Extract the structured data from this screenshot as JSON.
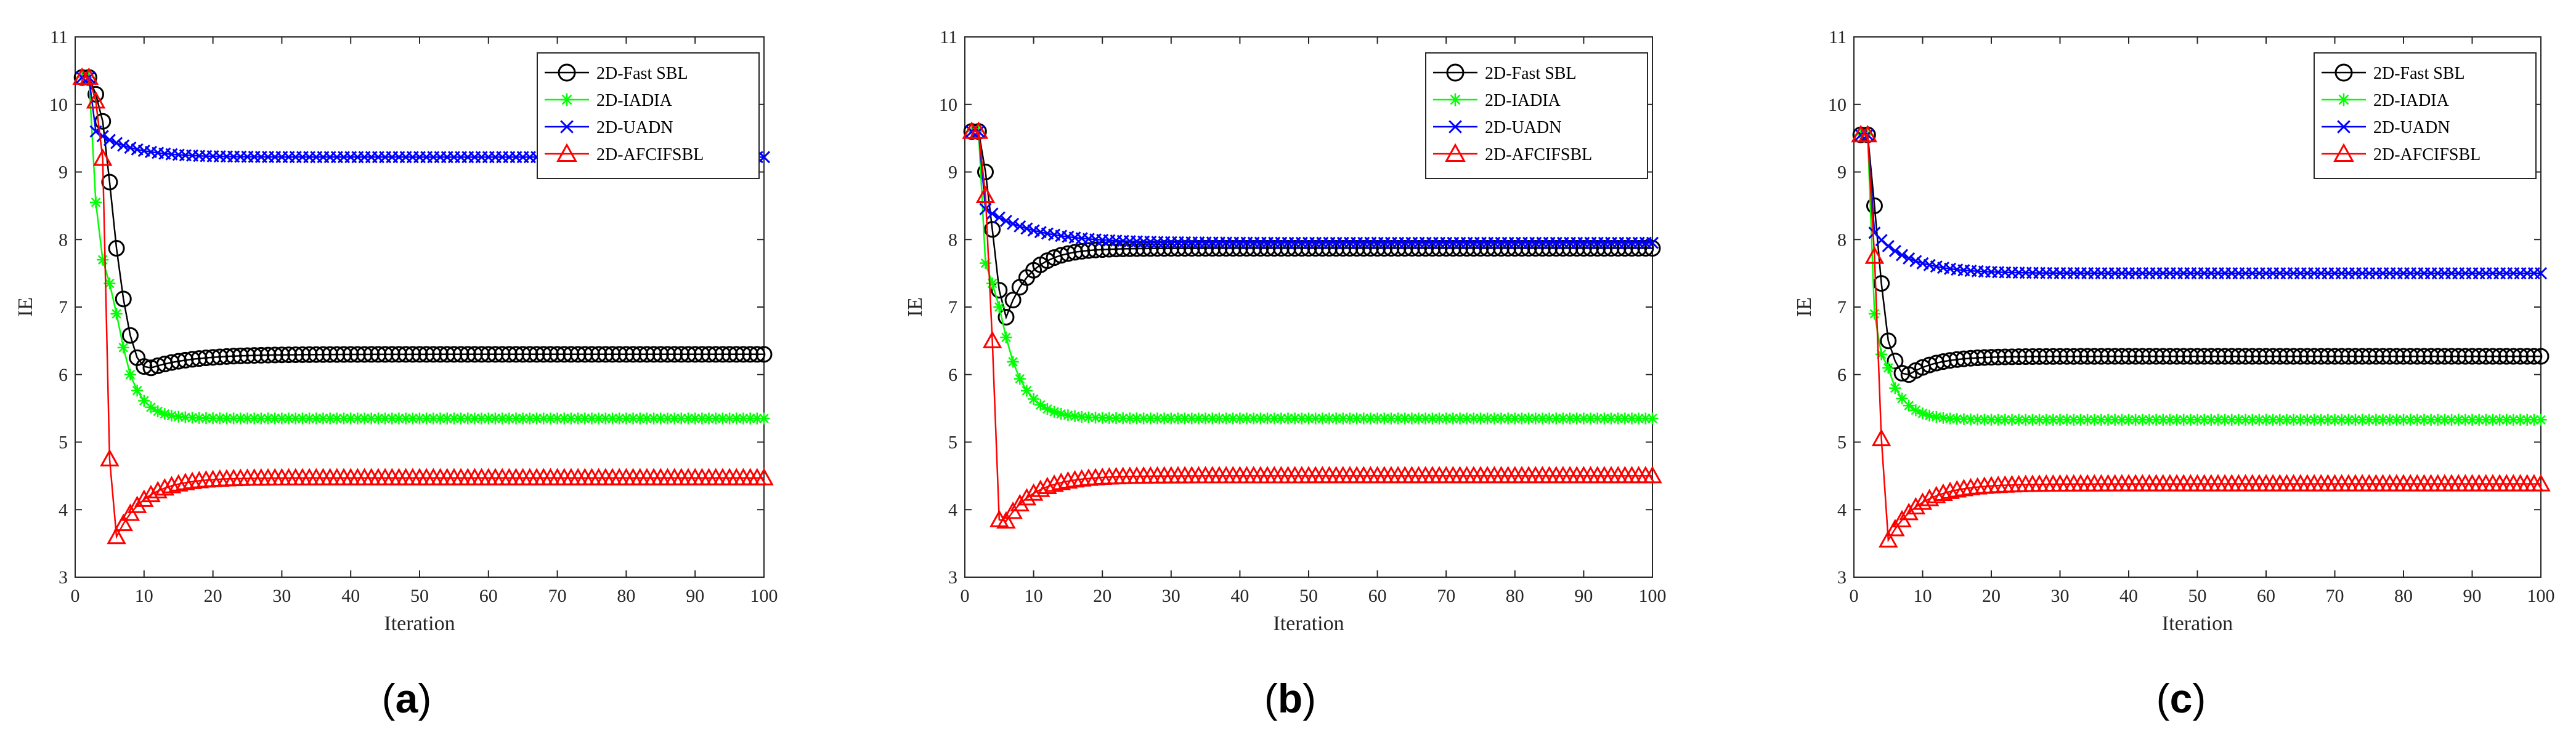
{
  "figure": {
    "panels": [
      {
        "label_open": "(",
        "label_letter": "a",
        "label_close": ")"
      },
      {
        "label_open": "(",
        "label_letter": "b",
        "label_close": ")"
      },
      {
        "label_open": "(",
        "label_letter": "c",
        "label_close": ")"
      }
    ]
  },
  "series_style": [
    {
      "name": "2D-Fast SBL",
      "color": "#000000",
      "marker": "circle"
    },
    {
      "name": "2D-IADIA",
      "color": "#00ff00",
      "marker": "asterisk"
    },
    {
      "name": "2D-UADN",
      "color": "#0000ff",
      "marker": "x"
    },
    {
      "name": "2D-AFCIFSBL",
      "color": "#ff0000",
      "marker": "triangle"
    }
  ],
  "chart_data": [
    {
      "type": "line",
      "panel": "a",
      "title": "",
      "xlabel": "Iteration",
      "ylabel": "IE",
      "xlim": [
        0,
        100
      ],
      "ylim": [
        3,
        11
      ],
      "xticks": [
        0,
        10,
        20,
        30,
        40,
        50,
        60,
        70,
        80,
        90,
        100
      ],
      "yticks": [
        3,
        4,
        5,
        6,
        7,
        8,
        9,
        10,
        11
      ],
      "legend_position": "top-right",
      "series": [
        {
          "name": "2D-Fast SBL",
          "start": [
            10.4,
            10.4,
            10.15,
            9.75,
            8.85,
            7.87,
            7.12,
            6.58,
            6.25,
            6.12,
            6.1
          ],
          "tau": 6,
          "final": 6.3
        },
        {
          "name": "2D-IADIA",
          "start": [
            10.4,
            10.4,
            8.55,
            7.7,
            7.35,
            6.9,
            6.4,
            6.0
          ],
          "tau": 2.2,
          "final": 5.35
        },
        {
          "name": "2D-UADN",
          "start": [
            10.4,
            10.4,
            9.6
          ],
          "tau": 5,
          "final": 9.22
        },
        {
          "name": "2D-AFCIFSBL",
          "start": [
            10.4,
            10.4,
            10.05,
            9.2,
            4.75,
            3.6
          ],
          "tau": 4,
          "final": 4.47
        }
      ]
    },
    {
      "type": "line",
      "panel": "b",
      "title": "",
      "xlabel": "Iteration",
      "ylabel": "IE",
      "xlim": [
        0,
        100
      ],
      "ylim": [
        3,
        11
      ],
      "xticks": [
        0,
        10,
        20,
        30,
        40,
        50,
        60,
        70,
        80,
        90,
        100
      ],
      "yticks": [
        3,
        4,
        5,
        6,
        7,
        8,
        9,
        10,
        11
      ],
      "legend_position": "top-right",
      "series": [
        {
          "name": "2D-Fast SBL",
          "start": [
            9.6,
            9.6,
            9.0,
            8.15,
            7.25,
            6.85
          ],
          "tau": 3.5,
          "final": 7.87
        },
        {
          "name": "2D-IADIA",
          "start": [
            9.6,
            9.6,
            7.65,
            7.35,
            7.0,
            6.55
          ],
          "tau": 2.8,
          "final": 5.35
        },
        {
          "name": "2D-UADN",
          "start": [
            9.6,
            9.6,
            8.45
          ],
          "tau": 7,
          "final": 7.95
        },
        {
          "name": "2D-AFCIFSBL",
          "start": [
            9.6,
            9.6,
            8.65,
            6.5,
            3.85,
            3.83
          ],
          "tau": 4.2,
          "final": 4.5
        }
      ]
    },
    {
      "type": "line",
      "panel": "c",
      "title": "",
      "xlabel": "Iteration",
      "ylabel": "IE",
      "xlim": [
        0,
        100
      ],
      "ylim": [
        3,
        11
      ],
      "xticks": [
        0,
        10,
        20,
        30,
        40,
        50,
        60,
        70,
        80,
        90,
        100
      ],
      "yticks": [
        3,
        4,
        5,
        6,
        7,
        8,
        9,
        10,
        11
      ],
      "legend_position": "top-right",
      "series": [
        {
          "name": "2D-Fast SBL",
          "start": [
            9.55,
            9.55,
            8.5,
            7.35,
            6.5,
            6.2,
            6.02,
            6.0
          ],
          "tau": 4,
          "final": 6.27
        },
        {
          "name": "2D-IADIA",
          "start": [
            9.55,
            9.55,
            6.9,
            6.3,
            6.1,
            5.8
          ],
          "tau": 2.5,
          "final": 5.33
        },
        {
          "name": "2D-UADN",
          "start": [
            9.55,
            9.55,
            8.1
          ],
          "tau": 5,
          "final": 7.5
        },
        {
          "name": "2D-AFCIFSBL",
          "start": [
            9.55,
            9.55,
            7.75,
            5.05,
            3.55
          ],
          "tau": 4.5,
          "final": 4.38
        }
      ]
    }
  ]
}
